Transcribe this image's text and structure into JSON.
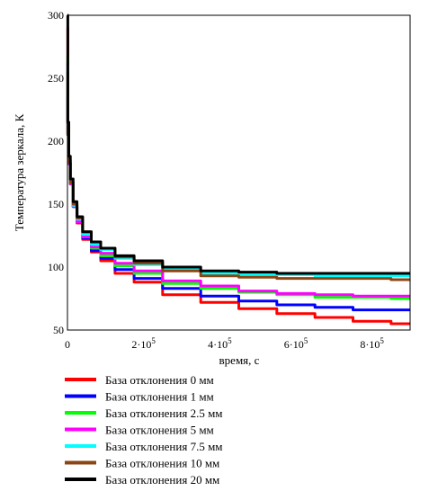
{
  "chart_data": {
    "type": "line",
    "xlabel": "время, с",
    "ylabel": "Температура зеркала, К",
    "xlim": [
      0,
      900000
    ],
    "ylim": [
      50,
      300
    ],
    "grid": false,
    "legend_position": "bottom",
    "x_ticks": [
      0,
      200000,
      400000,
      600000,
      800000
    ],
    "x_tick_labels": [
      {
        "base": "0",
        "exp": ""
      },
      {
        "base": "2·10",
        "exp": "5"
      },
      {
        "base": "4·10",
        "exp": "5"
      },
      {
        "base": "6·10",
        "exp": "5"
      },
      {
        "base": "8·10",
        "exp": "5"
      }
    ],
    "y_ticks": [
      50,
      100,
      150,
      200,
      250,
      300
    ],
    "y_tick_labels": [
      "50",
      "100",
      "150",
      "200",
      "250",
      "300"
    ],
    "series": [
      {
        "name": "База отклонения 0 мм",
        "color": "#ff0000",
        "x": [
          0,
          2000,
          5000,
          10000,
          20000,
          30000,
          50000,
          75000,
          100000,
          150000,
          200000,
          300000,
          400000,
          500000,
          600000,
          700000,
          800000,
          900000
        ],
        "y": [
          290,
          215,
          185,
          167,
          148,
          135,
          122,
          112,
          105,
          95,
          88,
          78,
          72,
          67,
          63,
          60,
          57,
          55
        ]
      },
      {
        "name": "База отклонения 1 мм",
        "color": "#0000ff",
        "x": [
          0,
          2000,
          5000,
          10000,
          20000,
          30000,
          50000,
          75000,
          100000,
          150000,
          200000,
          300000,
          400000,
          500000,
          600000,
          700000,
          800000,
          900000
        ],
        "y": [
          235,
          205,
          182,
          166,
          148,
          136,
          123,
          113,
          107,
          98,
          91,
          83,
          77,
          73,
          70,
          68,
          66,
          66
        ]
      },
      {
        "name": "База отклонения 2.5 мм",
        "color": "#00ff00",
        "x": [
          0,
          2000,
          5000,
          10000,
          20000,
          30000,
          50000,
          75000,
          100000,
          150000,
          200000,
          300000,
          400000,
          500000,
          600000,
          700000,
          800000,
          900000
        ],
        "y": [
          268,
          208,
          183,
          166,
          148,
          136,
          124,
          115,
          109,
          101,
          95,
          87,
          83,
          80,
          78,
          76,
          76,
          75
        ]
      },
      {
        "name": "База отклонения 5 мм",
        "color": "#ff00ff",
        "x": [
          0,
          2000,
          5000,
          10000,
          20000,
          30000,
          50000,
          75000,
          100000,
          150000,
          200000,
          300000,
          400000,
          500000,
          600000,
          700000,
          800000,
          900000
        ],
        "y": [
          262,
          206,
          182,
          166,
          148,
          136,
          124,
          116,
          111,
          103,
          97,
          89,
          85,
          81,
          79,
          78,
          77,
          77
        ]
      },
      {
        "name": "База отклонения 7.5 мм",
        "color": "#00ffff",
        "x": [
          0,
          2000,
          5000,
          10000,
          20000,
          30000,
          50000,
          75000,
          100000,
          150000,
          200000,
          300000,
          400000,
          500000,
          600000,
          700000,
          800000,
          900000
        ],
        "y": [
          260,
          206,
          183,
          167,
          149,
          138,
          126,
          118,
          114,
          107,
          102,
          98,
          95,
          94,
          94,
          93,
          93,
          93
        ]
      },
      {
        "name": "База отклонения 10 мм",
        "color": "#8b4513",
        "x": [
          0,
          2000,
          5000,
          10000,
          20000,
          30000,
          50000,
          75000,
          100000,
          150000,
          200000,
          300000,
          400000,
          500000,
          600000,
          700000,
          800000,
          900000
        ],
        "y": [
          255,
          205,
          183,
          167,
          150,
          139,
          128,
          120,
          115,
          108,
          103,
          97,
          93,
          92,
          91,
          91,
          91,
          90
        ]
      },
      {
        "name": "База отклонения 20 мм",
        "color": "#000000",
        "x": [
          0,
          2000,
          5000,
          10000,
          20000,
          30000,
          50000,
          75000,
          100000,
          150000,
          200000,
          300000,
          400000,
          500000,
          600000,
          700000,
          800000,
          900000
        ],
        "y": [
          300,
          215,
          188,
          170,
          152,
          140,
          128,
          120,
          115,
          109,
          105,
          100,
          97,
          96,
          95,
          95,
          95,
          95
        ]
      }
    ]
  }
}
